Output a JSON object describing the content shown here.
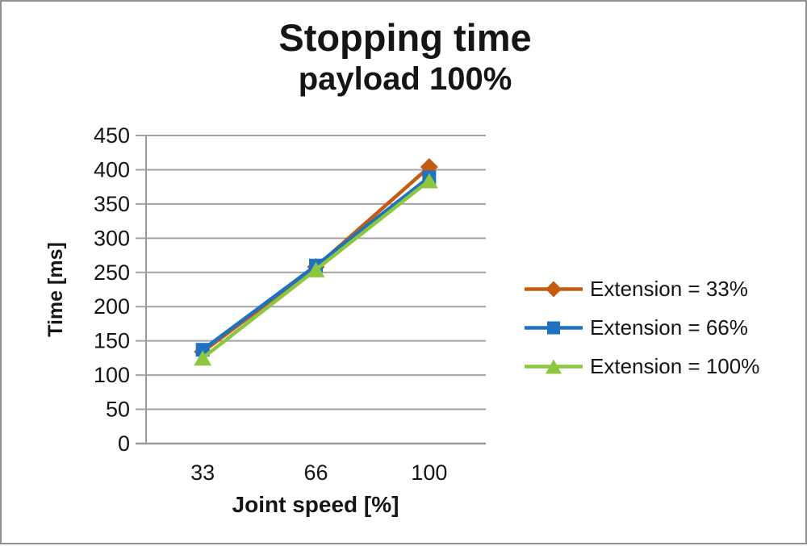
{
  "title": "Stopping time",
  "subtitle": "payload 100%",
  "chart_data": {
    "type": "line",
    "categories": [
      "33",
      "66",
      "100"
    ],
    "x": [
      33,
      66,
      100
    ],
    "series": [
      {
        "name": "Extension = 33%",
        "marker": "diamond",
        "color": "#C55A11",
        "values": [
          134,
          258,
          404
        ]
      },
      {
        "name": "Extension = 66%",
        "marker": "square",
        "color": "#1F72C1",
        "values": [
          137,
          260,
          389
        ]
      },
      {
        "name": "Extension = 100%",
        "marker": "triangle",
        "color": "#8DC63F",
        "values": [
          125,
          254,
          384
        ]
      }
    ],
    "xlabel": "Joint speed [%]",
    "ylabel": "Time [ms]",
    "ylim": [
      0,
      450
    ],
    "ytick_step": 50,
    "yticks": [
      0,
      50,
      100,
      150,
      200,
      250,
      300,
      350,
      400,
      450
    ],
    "grid": true,
    "legend_position": "right",
    "grid_color": "#A3A3A3",
    "axis_color": "#9A9A9A",
    "text_color": "#151515",
    "frame_border_color": "#8F8F8F"
  }
}
